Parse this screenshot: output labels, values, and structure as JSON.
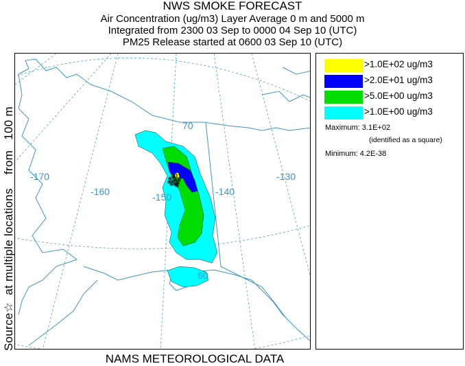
{
  "header": {
    "title": "NWS SMOKE FORECAST",
    "line2": "Air Concentration (ug/m3) Layer Average    0 m and  5000 m",
    "line3": "Integrated from 2300 03 Sep to 0000 04 Sep 10 (UTC)",
    "line4": "PM25 Release started at 0600 03 Sep 10 (UTC)"
  },
  "side_label": {
    "part1": "Source",
    "star": "☆",
    "part2": "  at multiple locations    from   100 m"
  },
  "footer": "NAMS METEOROLOGICAL DATA",
  "legend": {
    "items": [
      {
        "label": ">1.0E+02 ug/m3",
        "color": "#ffff00"
      },
      {
        "label": ">2.0E+01 ug/m3",
        "color": "#0000ff"
      },
      {
        "label": ">5.0E+00 ug/m3",
        "color": "#00dd00"
      },
      {
        "label": ">1.0E+00 ug/m3",
        "color": "#00ffff"
      }
    ],
    "maximum": "Maximum: 3.1E+02",
    "max_note": "(identified as a square)",
    "minimum": "Minimum: 4.2E-38"
  },
  "map": {
    "longitude_labels": [
      "-170",
      "-160",
      "-150",
      "-140",
      "-130"
    ],
    "latitude_labels": [
      "70",
      "60"
    ],
    "colors": {
      "grid": "#4a9fd0",
      "coast": "#3c96c8"
    }
  }
}
